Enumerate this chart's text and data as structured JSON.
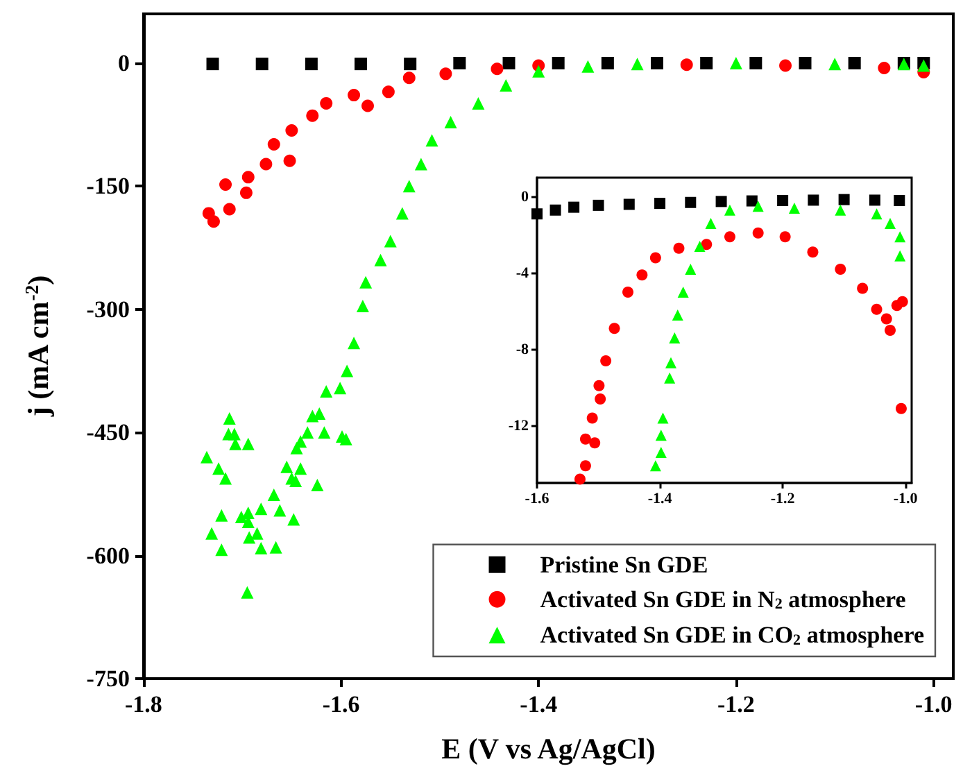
{
  "chart_data": [
    {
      "type": "scatter",
      "xlabel": "E (V vs Ag/AgCl)",
      "ylabel": "j (mA cm$^{-2}$)",
      "xlim": [
        -1.8,
        -0.98
      ],
      "ylim": [
        -750,
        60
      ],
      "xticks": [
        -1.8,
        -1.6,
        -1.4,
        -1.2,
        {
          "value": -1,
          "label": "-1.0"
        }
      ],
      "yticks": [
        0,
        -150,
        -300,
        -450,
        -600,
        -750
      ],
      "grid": false,
      "legend": "bottom right",
      "series": [
        {
          "name": "Pristine Sn GDE",
          "color": "#000000",
          "marker": "square",
          "x": [
            -1.73,
            -1.68,
            -1.63,
            -1.58,
            -1.53,
            -1.48,
            -1.43,
            -1.38,
            -1.33,
            -1.28,
            -1.23,
            -1.18,
            -1.13,
            -1.08,
            -1.03,
            -1.01
          ],
          "values": [
            -1,
            -1,
            -1,
            -1,
            -1,
            0,
            0,
            0,
            0,
            0,
            0,
            0,
            0,
            0,
            0,
            0
          ]
        },
        {
          "name": "Activated Sn GDE in N$_{2}$ atmosphere",
          "color": "#ff0000",
          "marker": "circle",
          "x": [
            -1.734,
            -1.729,
            -1.717,
            -1.713,
            -1.696,
            -1.694,
            -1.676,
            -1.668,
            -1.652,
            -1.65,
            -1.629,
            -1.615,
            -1.587,
            -1.573,
            -1.552,
            -1.531,
            -1.494,
            -1.442,
            -1.4,
            -1.35,
            -1.3,
            -1.25,
            -1.2,
            -1.15,
            -1.1,
            -1.05,
            -1.03,
            -1.01
          ],
          "values": [
            -183,
            -193,
            -148,
            -178,
            -158,
            -139,
            -123,
            -99,
            -119,
            -82,
            -64,
            -49,
            -39,
            -52,
            -35,
            -18,
            -13,
            -7,
            -3,
            null,
            null,
            -2,
            null,
            -3,
            null,
            -6,
            null,
            -11
          ]
        },
        {
          "name": "Activated Sn GDE in CO$_{2}$ atmosphere",
          "color": "#00ff00",
          "marker": "triangle",
          "x": [
            -1.736,
            -1.731,
            -1.724,
            -1.721,
            -1.721,
            -1.717,
            -1.714,
            -1.713,
            -1.708,
            -1.707,
            -1.701,
            -1.695,
            -1.694,
            -1.694,
            -1.694,
            -1.693,
            -1.685,
            -1.681,
            -1.681,
            -1.668,
            -1.666,
            -1.662,
            -1.655,
            -1.65,
            -1.648,
            -1.646,
            -1.645,
            -1.641,
            -1.641,
            -1.634,
            -1.629,
            -1.624,
            -1.622,
            -1.617,
            -1.615,
            -1.601,
            -1.599,
            -1.595,
            -1.594,
            -1.587,
            -1.578,
            -1.575,
            -1.56,
            -1.55,
            -1.538,
            -1.531,
            -1.519,
            -1.508,
            -1.489,
            -1.461,
            -1.433,
            -1.4,
            -1.35,
            -1.3,
            -1.2,
            -1.1,
            -1.03,
            -1.01
          ],
          "values": [
            -480,
            -573,
            -494,
            -551,
            -593,
            -506,
            -452,
            -433,
            -452,
            -464,
            -553,
            -645,
            -464,
            -548,
            -559,
            -578,
            -573,
            -591,
            -543,
            -526,
            -590,
            -545,
            -492,
            -506,
            -556,
            -509,
            -469,
            -494,
            -461,
            -450,
            -430,
            -514,
            -427,
            -450,
            -400,
            -396,
            -455,
            -458,
            -375,
            -341,
            -296,
            -267,
            -240,
            -217,
            -183,
            -150,
            -123,
            -94,
            -72,
            -49,
            -27,
            -10,
            -4,
            -1,
            0,
            -1,
            -1,
            -3
          ]
        }
      ]
    },
    {
      "type": "scatter",
      "xlim": [
        -1.6,
        -0.99
      ],
      "ylim": [
        -15,
        1
      ],
      "xticks": [
        -1.6,
        -1.4,
        -1.2,
        {
          "value": -1,
          "label": "-1.0"
        }
      ],
      "yticks": [
        0,
        -4,
        -8,
        -12
      ],
      "grid": false,
      "legend": false,
      "series": [
        {
          "color": "#000000",
          "marker": "square",
          "x": [
            -1.6,
            -1.57,
            -1.54,
            -1.5,
            -1.45,
            -1.4,
            -1.35,
            -1.3,
            -1.25,
            -1.2,
            -1.15,
            -1.1,
            -1.05,
            -1.01
          ],
          "values": [
            -0.9,
            -0.7,
            -0.55,
            -0.45,
            -0.4,
            -0.35,
            -0.3,
            -0.25,
            -0.22,
            -0.2,
            -0.18,
            -0.15,
            -0.18,
            -0.2
          ]
        },
        {
          "color": "#ff0000",
          "marker": "circle",
          "x": [
            -1.53,
            -1.521,
            -1.521,
            -1.51,
            -1.506,
            -1.497,
            -1.499,
            -1.488,
            -1.474,
            -1.452,
            -1.429,
            -1.407,
            -1.369,
            -1.324,
            -1.286,
            -1.24,
            -1.196,
            -1.151,
            -1.106,
            -1.07,
            -1.047,
            -1.031,
            -1.025,
            -1.014,
            -1.005,
            -1.007
          ],
          "values": [
            -14.8,
            -14.1,
            -12.7,
            -11.6,
            -12.9,
            -10.6,
            -9.9,
            -8.6,
            -6.9,
            -5,
            -4.1,
            -3.2,
            -2.7,
            -2.5,
            -2.1,
            -1.9,
            -2.1,
            -2.9,
            -3.8,
            -4.8,
            -5.9,
            -6.4,
            -7,
            -5.7,
            -5.5,
            -11.1
          ]
        },
        {
          "color": "#00ff00",
          "marker": "triangle",
          "x": [
            -1.407,
            -1.398,
            -1.398,
            -1.395,
            -1.384,
            -1.382,
            -1.376,
            -1.371,
            -1.362,
            -1.35,
            -1.335,
            -1.317,
            -1.286,
            -1.24,
            -1.181,
            -1.106,
            -1.047,
            -1.025,
            -1.009,
            -1.009
          ],
          "values": [
            -14.1,
            -13.4,
            -12.5,
            -11.6,
            -9.5,
            -8.7,
            -7.4,
            -6.2,
            -5,
            -3.8,
            -2.6,
            -1.4,
            -0.7,
            -0.5,
            -0.6,
            -0.7,
            -0.9,
            -1.4,
            -2.1,
            -3.1
          ]
        }
      ]
    }
  ]
}
